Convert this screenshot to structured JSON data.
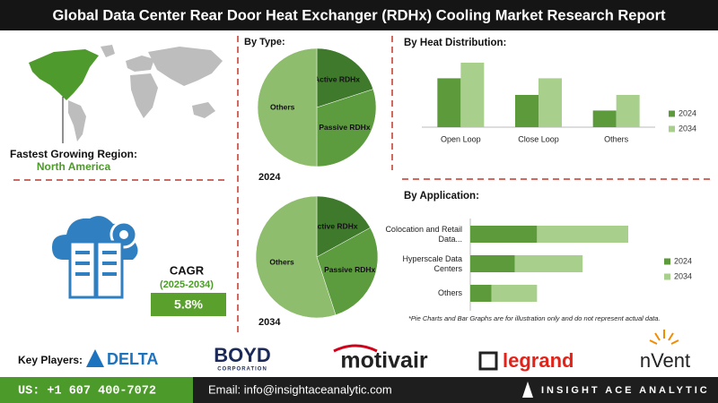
{
  "header": {
    "title": "Global Data Center Rear Door Heat Exchanger (RDHx) Cooling Market Research Report"
  },
  "region": {
    "label": "Fastest Growing Region:",
    "value": "North America"
  },
  "cagr": {
    "label": "CAGR",
    "period": "(2025-2034)",
    "value": "5.8%"
  },
  "by_type": {
    "title": "By Type:"
  },
  "heat": {
    "title": "By  Heat Distribution:"
  },
  "application": {
    "title": "By Application:"
  },
  "note": "*Pie Charts and Bar Graphs are for illustration only and do not represent actual data.",
  "players": {
    "label": "Key Players:",
    "logos": [
      "DELTA",
      "BOYD",
      "CORPORATION",
      "motivair",
      "legrand",
      "nVent"
    ]
  },
  "footer": {
    "phone": "US: +1 607 400-7072",
    "email": "Email: info@insightaceanalytic.com",
    "brand": "INSIGHT ACE ANALYTIC"
  },
  "chart_data": [
    {
      "type": "pie",
      "label": "2024",
      "categories": [
        "Active RDHx",
        "Passive RDHx",
        "Others"
      ],
      "values": [
        20,
        30,
        50
      ],
      "colors": [
        "#3f7a2c",
        "#5d9b3f",
        "#8fbd6e"
      ]
    },
    {
      "type": "pie",
      "label": "2034",
      "categories": [
        "Active RDHx",
        "Passive RDHx",
        "Others"
      ],
      "values": [
        17,
        28,
        55
      ],
      "colors": [
        "#3f7a2c",
        "#5d9b3f",
        "#8fbd6e"
      ]
    },
    {
      "type": "bar",
      "categories": [
        "Open Loop",
        "Close Loop",
        "Others"
      ],
      "series": [
        {
          "name": "2024",
          "color": "#5c9a3b",
          "values": [
            47,
            31,
            16
          ]
        },
        {
          "name": "2034",
          "color": "#a8d08c",
          "values": [
            62,
            47,
            31
          ]
        }
      ]
    },
    {
      "type": "hbar_stacked",
      "categories": [
        "Colocation and Retail Data...",
        "Hyperscale Data Centers",
        "Others"
      ],
      "series": [
        {
          "name": "2024",
          "color": "#5c9a3b",
          "values": [
            60,
            40,
            19
          ]
        },
        {
          "name": "2034",
          "color": "#a8d08c",
          "values": [
            82,
            61,
            41
          ]
        }
      ]
    }
  ]
}
